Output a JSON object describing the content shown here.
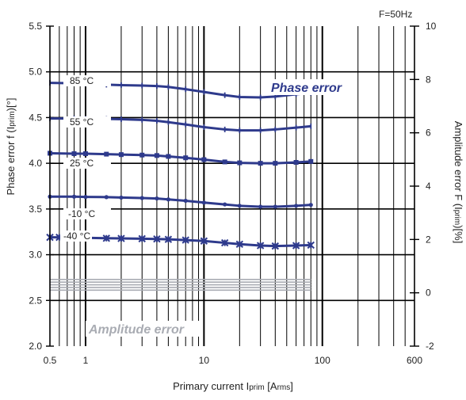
{
  "chart_data": {
    "type": "line",
    "annotation": "F=50Hz",
    "xlabel_main": "Primary current I",
    "xlabel_sub": "prim",
    "xlabel_unit": " [A",
    "xlabel_unit_sub": "rms",
    "xlabel_end": "]",
    "ylabel_left_main": "Phase error f (I",
    "ylabel_left_sub": "prim",
    "ylabel_left_end": ")[°]",
    "ylabel_right_main": "Amplitude error F (I",
    "ylabel_right_sub": "prim",
    "ylabel_right_end": ")[%]",
    "x_scale": "log",
    "xlim": [
      0.5,
      600
    ],
    "ylim_left": [
      2.0,
      5.5
    ],
    "ylim_right": [
      -2,
      10
    ],
    "x_ticks": [
      0.5,
      1,
      10,
      100,
      600
    ],
    "x_tick_labels": [
      "0.5",
      "1",
      "10",
      "100",
      "600"
    ],
    "y_left_ticks": [
      2.0,
      2.5,
      3.0,
      3.5,
      4.0,
      4.5,
      5.0,
      5.5
    ],
    "y_left_tick_labels": [
      "2.0",
      "2.5",
      "3.0",
      "3.5",
      "4.0",
      "4.5",
      "5.0",
      "5.5"
    ],
    "y_right_ticks": [
      -2,
      0,
      2,
      4,
      6,
      8,
      10
    ],
    "y_right_tick_labels": [
      "-2",
      "0",
      "2",
      "4",
      "6",
      "8",
      "10"
    ],
    "phase_label": "Phase error",
    "amplitude_label": "Amplitude error",
    "series_color": "#2e3a8c",
    "amplitude_color": "#a9acb3",
    "series": [
      {
        "name": "85 °C",
        "marker": "tick",
        "x": [
          0.5,
          0.8,
          1,
          1.5,
          2,
          3,
          4,
          5,
          7,
          10,
          15,
          20,
          30,
          40,
          60,
          80
        ],
        "y": [
          4.88,
          4.875,
          4.87,
          4.86,
          4.855,
          4.85,
          4.845,
          4.835,
          4.81,
          4.78,
          4.745,
          4.725,
          4.72,
          4.73,
          4.755,
          4.77
        ]
      },
      {
        "name": "55 °C",
        "marker": "tick",
        "x": [
          0.5,
          0.8,
          1,
          1.5,
          2,
          3,
          4,
          5,
          7,
          10,
          15,
          20,
          30,
          40,
          60,
          80
        ],
        "y": [
          4.49,
          4.49,
          4.488,
          4.485,
          4.482,
          4.475,
          4.465,
          4.45,
          4.425,
          4.395,
          4.37,
          4.36,
          4.36,
          4.37,
          4.39,
          4.405
        ]
      },
      {
        "name": "25 °C",
        "marker": "square",
        "x": [
          0.5,
          0.8,
          1,
          1.5,
          2,
          3,
          4,
          5,
          7,
          10,
          15,
          20,
          30,
          40,
          60,
          80
        ],
        "y": [
          4.11,
          4.105,
          4.105,
          4.1,
          4.095,
          4.09,
          4.085,
          4.075,
          4.06,
          4.04,
          4.015,
          4.005,
          4.0,
          4.0,
          4.01,
          4.02
        ]
      },
      {
        "name": "-10 °C",
        "marker": "dot",
        "x": [
          0.5,
          0.8,
          1,
          1.5,
          2,
          3,
          4,
          5,
          7,
          10,
          15,
          20,
          30,
          40,
          60,
          80
        ],
        "y": [
          3.635,
          3.635,
          3.632,
          3.63,
          3.625,
          3.62,
          3.615,
          3.605,
          3.59,
          3.57,
          3.55,
          3.535,
          3.525,
          3.525,
          3.535,
          3.545
        ]
      },
      {
        "name": "-40 °C",
        "marker": "star",
        "x": [
          0.5,
          0.6,
          0.8,
          1,
          1.5,
          2,
          3,
          4,
          5,
          7,
          10,
          15,
          20,
          30,
          40,
          60,
          80
        ],
        "y": [
          3.19,
          3.19,
          3.188,
          3.185,
          3.18,
          3.178,
          3.175,
          3.172,
          3.168,
          3.16,
          3.15,
          3.13,
          3.115,
          3.1,
          3.095,
          3.1,
          3.105
        ]
      }
    ],
    "amplitude_series": [
      {
        "x": [
          0.5,
          80
        ],
        "y": [
          0.5,
          0.5
        ]
      },
      {
        "x": [
          0.5,
          80
        ],
        "y": [
          0.4,
          0.4
        ]
      },
      {
        "x": [
          0.5,
          80
        ],
        "y": [
          0.3,
          0.3
        ]
      },
      {
        "x": [
          0.5,
          80
        ],
        "y": [
          0.2,
          0.2
        ]
      },
      {
        "x": [
          0.5,
          80
        ],
        "y": [
          0.1,
          0.1
        ]
      }
    ]
  }
}
